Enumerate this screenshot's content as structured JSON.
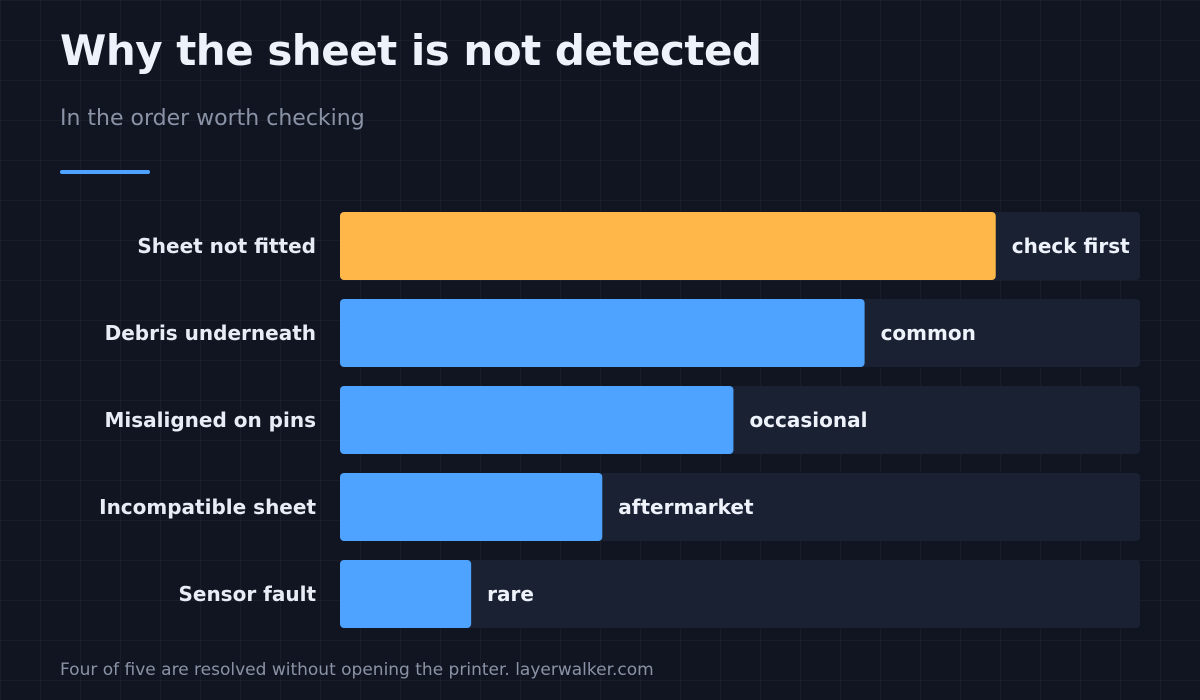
{
  "title": "Why the sheet is not detected",
  "subtitle": "In the order worth checking",
  "footnote": "Four of five are resolved without opening the printer. layerwalker.com",
  "colors": {
    "highlight": "#ffb74a",
    "bar": "#4da3ff",
    "track": "#1a2133",
    "accent": "#4da3ff"
  },
  "chart_data": {
    "type": "bar",
    "orientation": "horizontal",
    "categories": [
      "Sheet not fitted",
      "Debris underneath",
      "Misaligned on pins",
      "Incompatible sheet",
      "Sensor fault"
    ],
    "values": [
      5,
      4,
      3,
      2,
      1
    ],
    "value_labels": [
      "check first",
      "common",
      "occasional",
      "aftermarket",
      "rare"
    ],
    "highlighted_index": 0,
    "xlim": [
      0,
      6.1
    ],
    "grid": false,
    "legend": "none"
  }
}
